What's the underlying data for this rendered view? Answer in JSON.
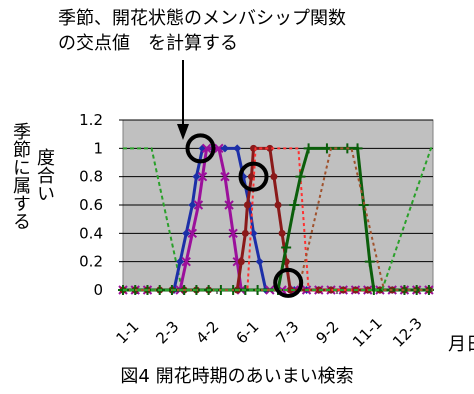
{
  "annotation": {
    "line1": "季節、開花状態のメンバシップ関数",
    "line2": "の交点値　を計算する"
  },
  "ylabel_lines": [
    "季節に属する",
    "度合い"
  ],
  "xlabel": "月日",
  "caption": "図4 開花時期のあいまい検索",
  "chart_data": {
    "type": "line",
    "x_tick_labels": [
      "1-1",
      "2-3",
      "4-2",
      "6-1",
      "7-3",
      "9-2",
      "11-1",
      "12-3"
    ],
    "y_ticks": [
      "0",
      "0.2",
      "0.4",
      "0.6",
      "0.8",
      "1",
      "1.2"
    ],
    "ylim": [
      0,
      1.2
    ],
    "xlim": [
      0,
      7.6
    ],
    "grid": true,
    "legend": "none",
    "series": [
      {
        "color": "#2aa02a",
        "dash": "4,3",
        "marker": "none",
        "points": [
          [
            0,
            1
          ],
          [
            0.7,
            1
          ],
          [
            1.45,
            0
          ],
          [
            7.6,
            0
          ]
        ]
      },
      {
        "color": "#1c2fa8",
        "marker": "diamond",
        "points": [
          [
            0,
            0
          ],
          [
            1.25,
            0
          ],
          [
            1.4,
            0.2
          ],
          [
            1.55,
            0.4
          ],
          [
            1.7,
            0.6
          ],
          [
            1.8,
            0.8
          ],
          [
            1.95,
            1
          ],
          [
            2.2,
            1
          ],
          [
            2.5,
            1
          ],
          [
            2.8,
            1
          ],
          [
            2.95,
            0.8
          ],
          [
            3.1,
            0.6
          ],
          [
            3.2,
            0.4
          ],
          [
            3.35,
            0.2
          ],
          [
            3.5,
            0
          ],
          [
            7.6,
            0
          ]
        ]
      },
      {
        "color": "#9b109b",
        "marker": "x",
        "points": [
          [
            0,
            0
          ],
          [
            1.4,
            0
          ],
          [
            1.55,
            0.2
          ],
          [
            1.7,
            0.4
          ],
          [
            1.85,
            0.6
          ],
          [
            1.95,
            0.8
          ],
          [
            2.05,
            1
          ],
          [
            2.35,
            1
          ],
          [
            2.5,
            0.8
          ],
          [
            2.6,
            0.6
          ],
          [
            2.7,
            0.4
          ],
          [
            2.8,
            0.2
          ],
          [
            2.9,
            0
          ],
          [
            7.6,
            0
          ]
        ]
      },
      {
        "color": "#8a1a1a",
        "marker": "dot",
        "points": [
          [
            0,
            0
          ],
          [
            2.8,
            0
          ],
          [
            2.9,
            0.2
          ],
          [
            3.0,
            0.4
          ],
          [
            3.05,
            0.6
          ],
          [
            3.15,
            0.8
          ],
          [
            3.2,
            1
          ],
          [
            3.6,
            1
          ],
          [
            3.7,
            0.8
          ],
          [
            3.8,
            0.6
          ],
          [
            3.9,
            0.4
          ],
          [
            4.0,
            0.2
          ],
          [
            4.1,
            0
          ],
          [
            7.6,
            0
          ]
        ]
      },
      {
        "color": "#ff3030",
        "dash": "3,3",
        "marker": "none",
        "points": [
          [
            0,
            0
          ],
          [
            3.05,
            0
          ],
          [
            3.25,
            1
          ],
          [
            4.3,
            1
          ],
          [
            4.55,
            0
          ],
          [
            7.6,
            0
          ]
        ]
      },
      {
        "color": "#0b5e0b",
        "marker": "plus",
        "points": [
          [
            0,
            0
          ],
          [
            3.8,
            0
          ],
          [
            4.0,
            0.3
          ],
          [
            4.2,
            0.6
          ],
          [
            4.35,
            0.8
          ],
          [
            4.55,
            1
          ],
          [
            5.0,
            1
          ],
          [
            5.5,
            1
          ],
          [
            5.75,
            1
          ],
          [
            5.9,
            0.6
          ],
          [
            6.05,
            0.2
          ],
          [
            6.15,
            0
          ],
          [
            7.6,
            0
          ]
        ]
      },
      {
        "color": "#a0522d",
        "dash": "3,3",
        "marker": "none",
        "points": [
          [
            0,
            0
          ],
          [
            4.3,
            0
          ],
          [
            5.1,
            1
          ],
          [
            5.6,
            1
          ],
          [
            6.4,
            0
          ],
          [
            7.6,
            0
          ]
        ]
      },
      {
        "color": "#2aa02a",
        "dash": "4,3",
        "marker": "none",
        "points": [
          [
            0,
            0
          ],
          [
            6.35,
            0
          ],
          [
            7.55,
            1
          ],
          [
            7.6,
            1
          ]
        ]
      }
    ],
    "circles": [
      [
        1.9,
        1.0
      ],
      [
        3.2,
        0.8
      ],
      [
        4.05,
        0.05
      ]
    ]
  }
}
